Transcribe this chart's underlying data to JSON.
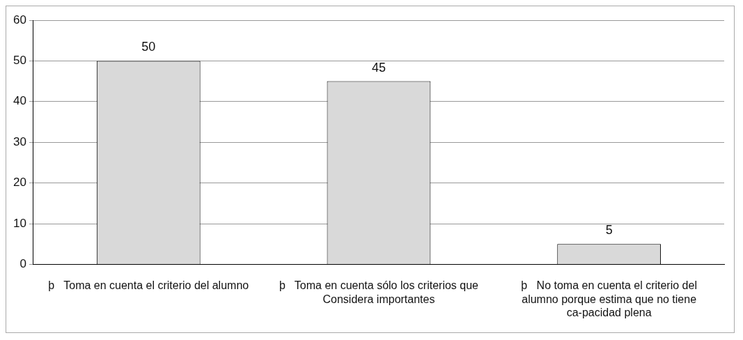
{
  "chart_data": {
    "type": "bar",
    "categories": [
      "þ   Toma en cuenta el criterio del alumno",
      "þ   Toma en cuenta sólo los criterios que Considera importantes",
      "þ   No toma en cuenta el criterio del alumno porque estima que no tiene ca-pacidad plena"
    ],
    "values": [
      50,
      45,
      5
    ],
    "color": "#d9d9d9",
    "ylim": [
      0,
      60
    ],
    "yticks": [
      0,
      10,
      20,
      30,
      40,
      50,
      60
    ],
    "grid": "y",
    "data_labels": true,
    "legend": false
  }
}
